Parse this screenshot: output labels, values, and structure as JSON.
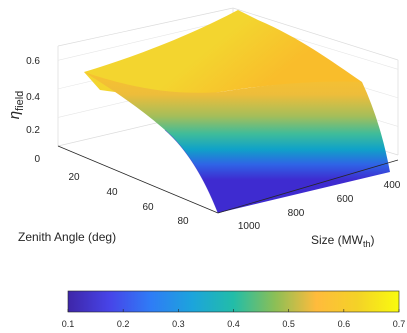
{
  "chart_data": {
    "type": "surface",
    "title": "",
    "zlabel": {
      "main": "η",
      "sub": "field"
    },
    "xlabel": "Zenith Angle (deg)",
    "ylabel": {
      "main": "Size (MW",
      "sub": "th",
      "close": ")"
    },
    "zenith_ticks": [
      "20",
      "40",
      "60",
      "80"
    ],
    "size_ticks": [
      "400",
      "600",
      "800",
      "1000"
    ],
    "z_ticks": [
      "0",
      "0.2",
      "0.4",
      "0.6"
    ],
    "zenith_range": [
      0,
      90
    ],
    "size_range": [
      300,
      1100
    ],
    "z_range": [
      0,
      0.7
    ],
    "grid": true,
    "colorbar": {
      "colormap": "parula",
      "placement": "bottom",
      "ticks": [
        "0.1",
        "0.2",
        "0.3",
        "0.4",
        "0.5",
        "0.6",
        "0.7"
      ],
      "range": [
        0.1,
        0.7
      ]
    },
    "surface_samples": {
      "zenith": [
        0,
        30,
        60,
        90
      ],
      "size": [
        400,
        600,
        800,
        1000
      ],
      "eta_field": [
        [
          0.66,
          0.63,
          0.61,
          0.59
        ],
        [
          0.6,
          0.58,
          0.56,
          0.55
        ],
        [
          0.44,
          0.42,
          0.4,
          0.39
        ],
        [
          0.13,
          0.11,
          0.09,
          0.08
        ]
      ]
    }
  }
}
